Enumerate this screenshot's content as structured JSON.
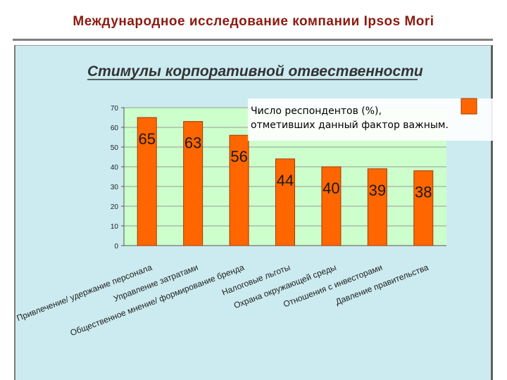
{
  "header": {
    "title": "Международное исследование компании Ipsos Mori"
  },
  "chart_data": {
    "type": "bar",
    "title": "Стимулы корпоративной отвественности",
    "categories": [
      "Привлечение/ удержание персонала",
      "Управление затратами",
      "Общественное мнение/ формирование бренда",
      "Налоговые льготы",
      "Охрана окружающей среды",
      "Отношения с инвесторами",
      "Давление правительства"
    ],
    "series": [
      {
        "name": "Число респондентов (%), отметивших данный фактор важным.",
        "values": [
          65,
          63,
          56,
          44,
          40,
          39,
          38
        ]
      }
    ],
    "ylim": [
      0,
      70
    ],
    "yticks": [
      0,
      10,
      20,
      30,
      40,
      50,
      60,
      70
    ],
    "grid": true,
    "legend": "top-right",
    "colors": {
      "bar": "#ff6600",
      "bar_edge": "#a33a00",
      "plot_bg": "#ccffcc",
      "panel_bg": "#ccebf0"
    }
  }
}
